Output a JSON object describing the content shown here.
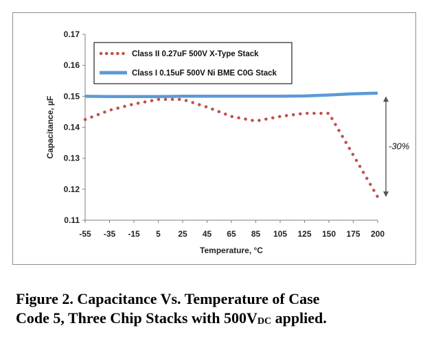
{
  "chart_data": {
    "type": "line",
    "xlabel": "Temperature, °C",
    "ylabel": "Capacitance, µF",
    "x_ticks": [
      "-55",
      "-35",
      "-15",
      "5",
      "25",
      "45",
      "65",
      "85",
      "105",
      "125",
      "150",
      "175",
      "200"
    ],
    "y_ticks": [
      "0.17",
      "0.16",
      "0.15",
      "0.14",
      "0.13",
      "0.12",
      "0.11"
    ],
    "ylim": [
      0.11,
      0.17
    ],
    "grid": false,
    "legend_position": "top-left",
    "series": [
      {
        "name": "Class II  0.27uF 500V X-Type Stack",
        "style": "dotted",
        "color": "#c0504d",
        "x": [
          -55,
          -35,
          -15,
          5,
          25,
          45,
          65,
          85,
          105,
          125,
          150,
          175,
          200
        ],
        "y": [
          0.1425,
          0.1455,
          0.1475,
          0.149,
          0.149,
          0.1465,
          0.1435,
          0.142,
          0.1435,
          0.1445,
          0.1445,
          0.131,
          0.1175
        ]
      },
      {
        "name": "Class I 0.15uF 500V Ni BME C0G Stack",
        "style": "solid",
        "color": "#5b9bd5",
        "x": [
          -55,
          -35,
          -15,
          5,
          25,
          45,
          65,
          85,
          105,
          125,
          150,
          175,
          200
        ],
        "y": [
          0.15,
          0.1499,
          0.1499,
          0.1499,
          0.15,
          0.15,
          0.15,
          0.15,
          0.15,
          0.1501,
          0.1504,
          0.1508,
          0.151
        ]
      }
    ],
    "annotation": "-30%"
  },
  "caption": {
    "line1": "Figure 2. Capacitance Vs. Temperature of Case",
    "line2_prefix": "Code 5, Three Chip Stacks with 500V",
    "line2_sub": "DC",
    "line2_suffix": " applied."
  }
}
